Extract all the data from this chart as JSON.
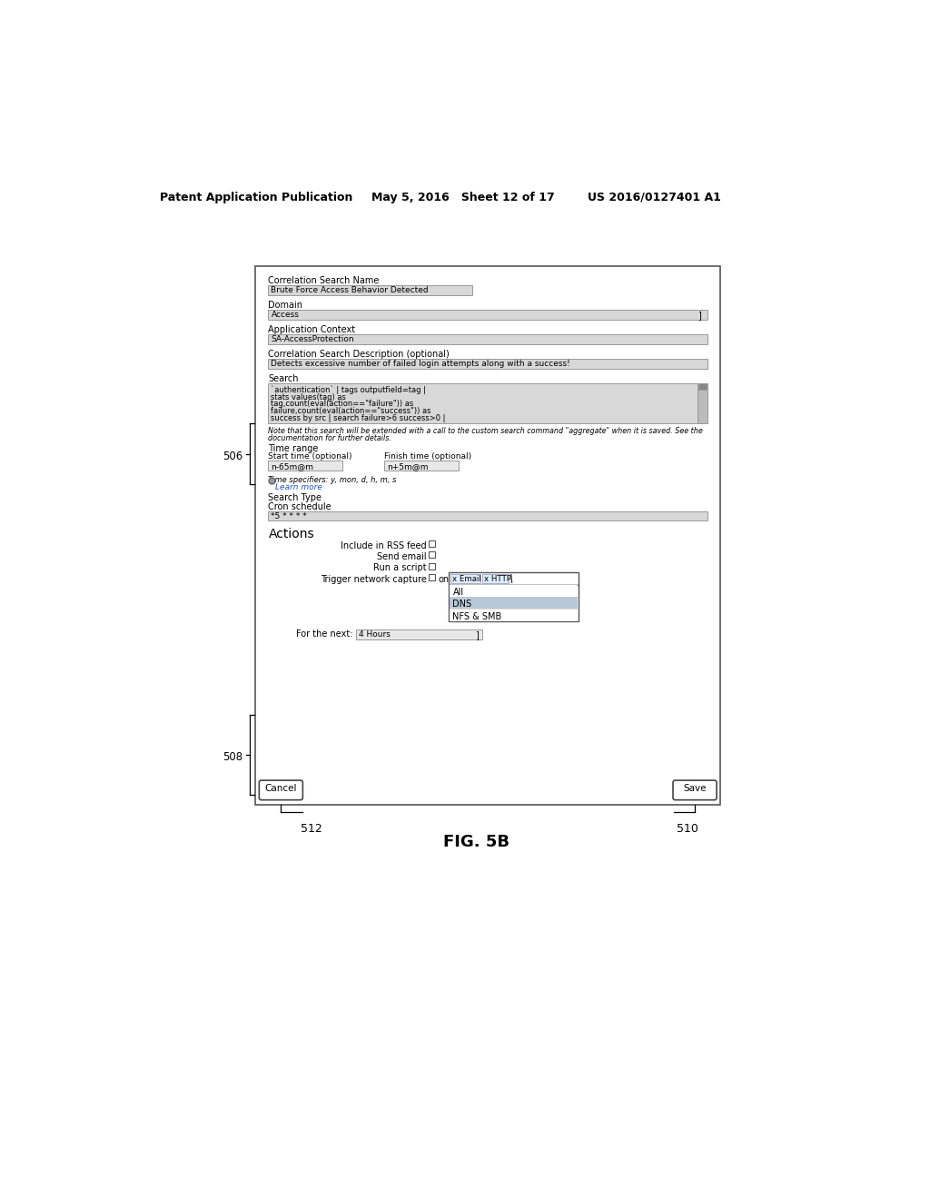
{
  "header_left": "Patent Application Publication",
  "header_mid": "May 5, 2016   Sheet 12 of 17",
  "header_right": "US 2016/0127401 A1",
  "fig_label": "FIG. 5B",
  "label_506": "506",
  "label_508": "508",
  "label_512": "512",
  "label_510": "510",
  "form_title": "Correlation Search Name",
  "field1_value": "Brute Force Access Behavior Detected",
  "domain_label": "Domain",
  "domain_value": "Access",
  "appctx_label": "Application Context",
  "appctx_value": "SA-AccessProtection",
  "desc_label": "Correlation Search Description (optional)",
  "desc_value": "Detects excessive number of failed login attempts along with a success!",
  "search_label": "Search",
  "search_line1": "`authentication` | tags outputfield=tag |",
  "search_line2": "stats values(tag) as",
  "search_line3": "tag,count(eval(action==\"failure\")) as",
  "search_line4": "failure,count(eval(action==\"success\")) as",
  "search_line5": "success by src | search failure>6 success>0 |",
  "note_line1": "Note that this search will be extended with a call to the custom search command \"aggregate\" when it is saved. See the",
  "note_line2": "documentation for further details.",
  "timerange_label": "Time range",
  "start_label": "Start time (optional)",
  "finish_label": "Finish time (optional)",
  "start_value": "n-65m@m",
  "finish_value": "n+5m@m",
  "timespec_text": "Time specifiers: y, mon, d, h, m, s",
  "learnmore_text": "Learn more",
  "searchtype_label": "Search Type",
  "cron_label": "Cron schedule",
  "cron_value": "*5 * * * *",
  "actions_label": "Actions",
  "rss_label": "Include in RSS feed",
  "email_label": "Send email",
  "script_label": "Run a script",
  "trigger_label": "Trigger network capture",
  "trigger_on": "on",
  "tag_email": "x Email",
  "tag_http": "x HTTP",
  "dropdown_all": "All",
  "dropdown_dns": "DNS",
  "dropdown_nfs": "NFS & SMB",
  "forthenext_label": "For the next:",
  "forthenext_value": "4 Hours",
  "cancel_btn": "Cancel",
  "save_btn": "Save",
  "bg_color": "#ffffff",
  "input_bg": "#d8d8d8",
  "input_bg_light": "#e8e8e8",
  "highlight_bg": "#b8c8d8",
  "form_ec": "#555555",
  "input_ec": "#999999"
}
